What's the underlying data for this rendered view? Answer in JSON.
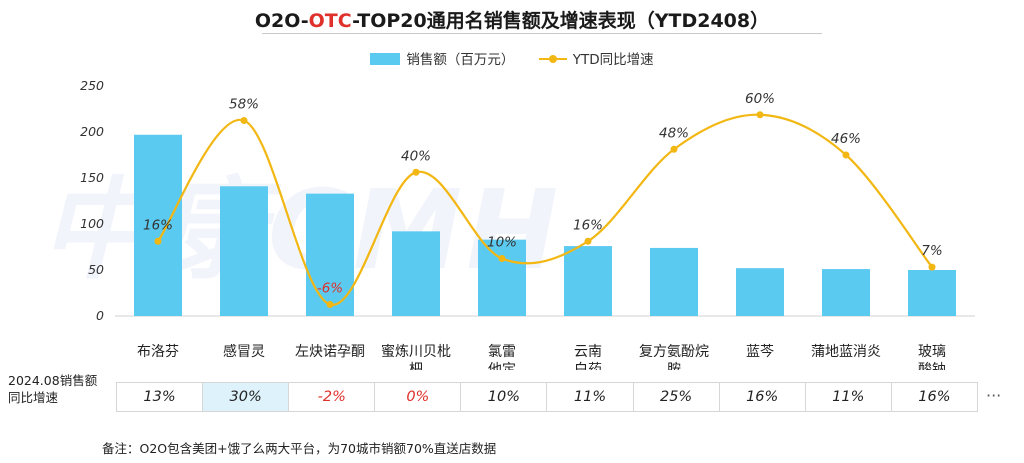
{
  "title": {
    "prefix": "O2O-",
    "highlight": "OTC",
    "suffix": "-TOP20通用名销售额及增速表现（YTD2408）"
  },
  "legend": {
    "bar_label": "销售额（百万元）",
    "line_label": "YTD同比增速"
  },
  "watermark": "中康CMH",
  "colors": {
    "bar": "#5bcaf0",
    "line": "#f2b713",
    "negative": "#e0302a",
    "title_highlight": "#e0302a"
  },
  "chart_data": {
    "type": "bar",
    "categories": [
      "布洛芬",
      "感冒灵",
      "左炔诺孕酮",
      "蜜炼川贝枇杷",
      "氯雷他定",
      "云南白药",
      "复方氨酚烷胺",
      "蓝芩",
      "蒲地蓝消炎",
      "玻璃酸钠"
    ],
    "category_lines": [
      [
        "布洛芬"
      ],
      [
        "感冒灵"
      ],
      [
        "左炔诺孕酮"
      ],
      [
        "蜜炼川贝枇",
        "杷"
      ],
      [
        "氯雷",
        "他定"
      ],
      [
        "云南",
        "白药"
      ],
      [
        "复方氨酚烷",
        "胺"
      ],
      [
        "蓝芩"
      ],
      [
        "蒲地蓝消炎"
      ],
      [
        "玻璃",
        "酸钠"
      ]
    ],
    "series": [
      {
        "name": "销售额（百万元）",
        "type": "bar",
        "values": [
          197,
          141,
          133,
          92,
          83,
          76,
          74,
          52,
          51,
          50
        ]
      },
      {
        "name": "YTD同比增速",
        "type": "line",
        "values": [
          16,
          58,
          -6,
          40,
          10,
          16,
          48,
          60,
          46,
          7
        ],
        "labels": [
          "16%",
          "58%",
          "-6%",
          "40%",
          "10%",
          "16%",
          "48%",
          "60%",
          "46%",
          "7%"
        ]
      }
    ],
    "y_ticks": [
      "0",
      "50",
      "100",
      "150",
      "200",
      "250"
    ],
    "ylim": [
      0,
      250
    ],
    "secondary_ylim": [
      -10,
      70
    ],
    "grid": false,
    "legend_position": "top"
  },
  "growth_table": {
    "label_lines": [
      "2024.08销售额",
      "同比增速"
    ],
    "values": [
      "13%",
      "30%",
      "-2%",
      "0%",
      "10%",
      "11%",
      "25%",
      "16%",
      "11%",
      "16%"
    ],
    "highlight_index": 1,
    "negative_indexes": [
      2,
      3
    ],
    "ellipsis": "···"
  },
  "footnote": "备注：O2O包含美团+饿了么两大平台，为70城市销额70%直送店数据"
}
